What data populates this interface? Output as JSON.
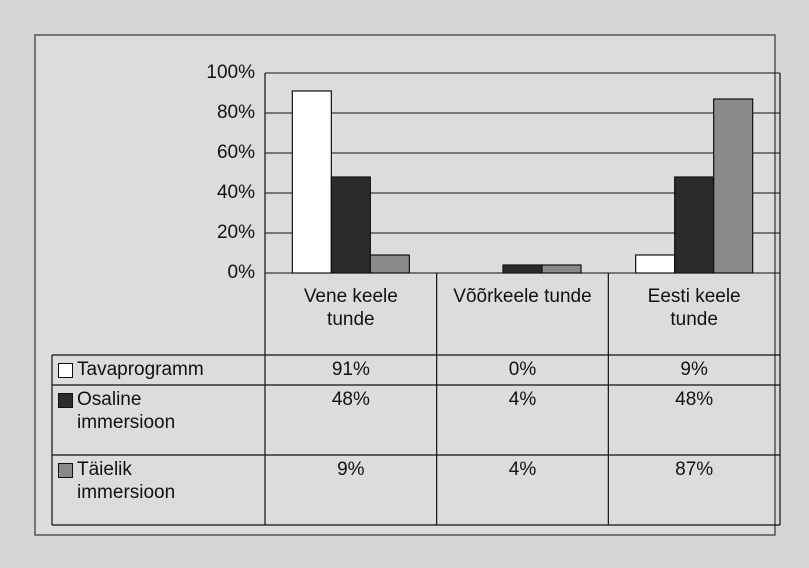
{
  "chart_data": {
    "type": "bar",
    "categories": [
      "Vene keele tunde",
      "Võõrkeele tunde",
      "Eesti keele tunde"
    ],
    "series": [
      {
        "name": "Tavaprogramm",
        "color": "#ffffff",
        "values": [
          91,
          0,
          9
        ],
        "value_labels": [
          "91%",
          "0%",
          "9%"
        ]
      },
      {
        "name": "Osaline immersioon",
        "color": "#2b2b2b",
        "values": [
          48,
          4,
          48
        ],
        "value_labels": [
          "48%",
          "4%",
          "48%"
        ]
      },
      {
        "name": "Täielik immersioon",
        "color": "#8a8a8a",
        "values": [
          9,
          4,
          87
        ],
        "value_labels": [
          "9%",
          "4%",
          "87%"
        ]
      }
    ],
    "ylim": [
      0,
      100
    ],
    "yticks": [
      {
        "value": 0,
        "label": "0%"
      },
      {
        "value": 20,
        "label": "20%"
      },
      {
        "value": 40,
        "label": "40%"
      },
      {
        "value": 60,
        "label": "60%"
      },
      {
        "value": 80,
        "label": "80%"
      },
      {
        "value": 100,
        "label": "100%"
      }
    ],
    "grid": true
  }
}
